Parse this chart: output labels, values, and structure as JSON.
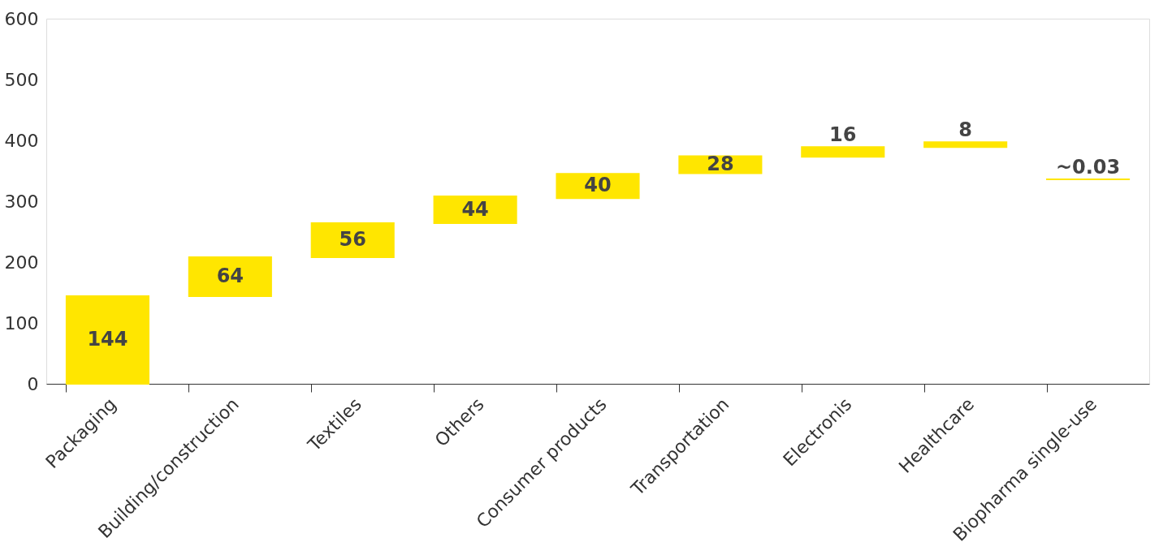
{
  "chart_data": {
    "type": "bar",
    "categories": [
      "Packaging",
      "Building/construction",
      "Textiles",
      "Others",
      "Consumer products",
      "Transportation",
      "Electronis",
      "Healthcare",
      "Biopharma single-use"
    ],
    "values": [
      144,
      64,
      56,
      44,
      40,
      28,
      16,
      8,
      0.03
    ],
    "base": [
      0,
      144,
      208,
      264,
      305,
      346,
      373,
      389,
      336
    ],
    "value_labels": [
      "144",
      "64",
      "56",
      "44",
      "40",
      "28",
      "16",
      "8",
      "~0.03"
    ],
    "color": "#ffe600",
    "ylim": [
      0,
      600
    ],
    "yticks": [
      0,
      100,
      200,
      300,
      400,
      500,
      600
    ],
    "grid": false
  }
}
